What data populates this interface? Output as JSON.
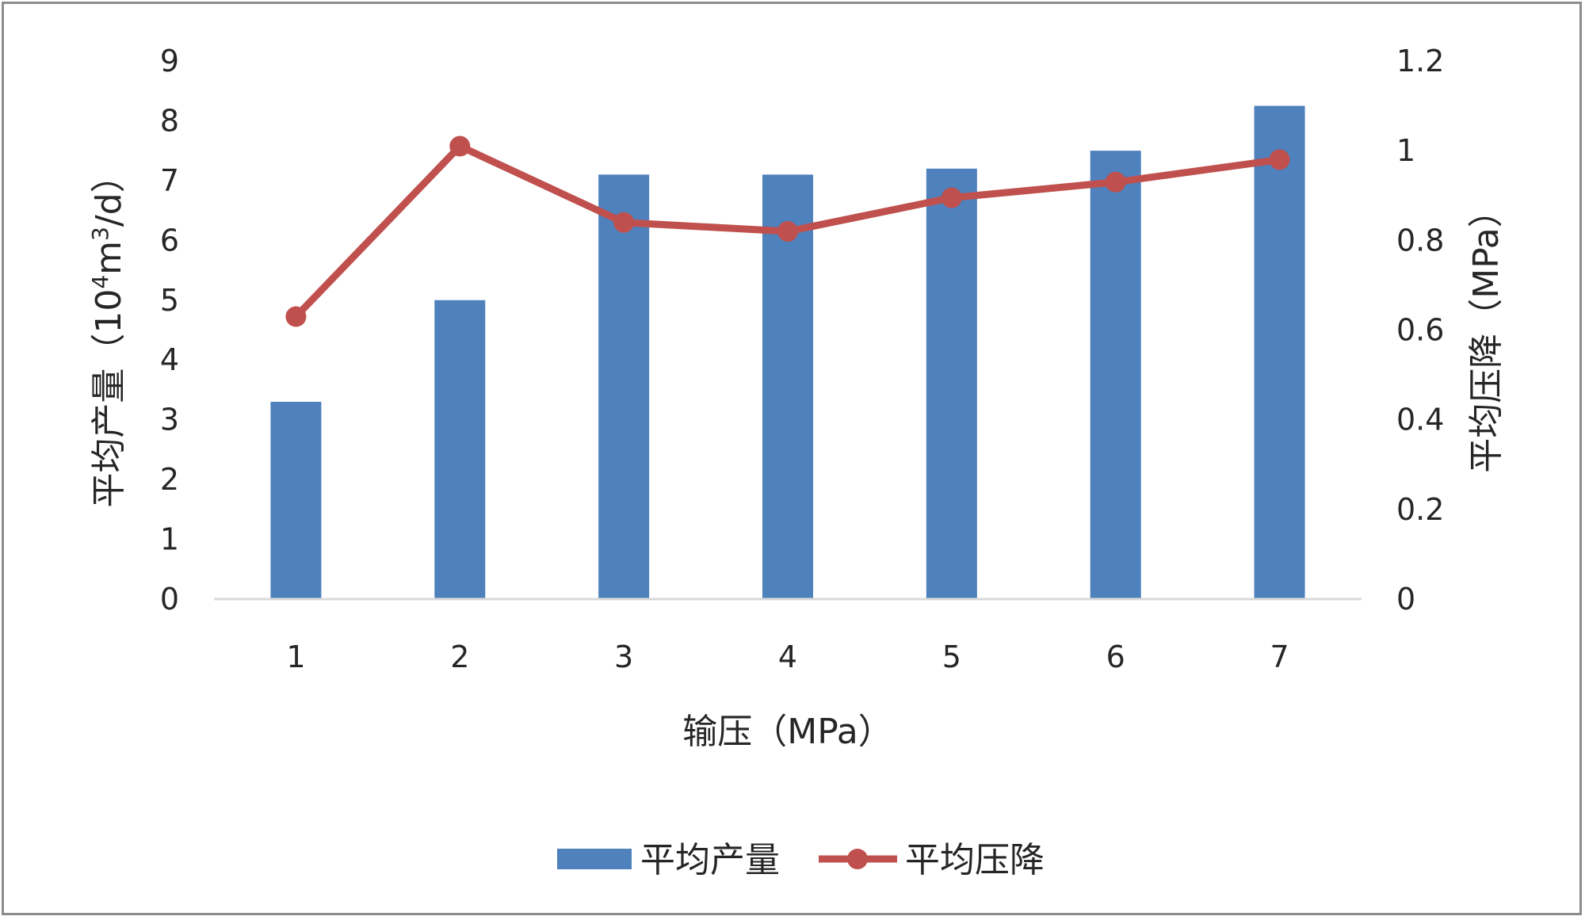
{
  "chart_data": {
    "type": "bar",
    "categories": [
      "1",
      "2",
      "3",
      "4",
      "5",
      "6",
      "7"
    ],
    "series": [
      {
        "name": "平均产量",
        "kind": "bar",
        "axis": "left",
        "color": "#4f81bd",
        "values": [
          3.3,
          5.0,
          7.1,
          7.1,
          7.2,
          7.5,
          8.25
        ]
      },
      {
        "name": "平均压降",
        "kind": "line",
        "axis": "right",
        "color": "#c0504d",
        "values": [
          0.63,
          1.01,
          0.84,
          0.82,
          0.895,
          0.93,
          0.98
        ]
      }
    ],
    "xlabel": "输压（MPa）",
    "ylabel": "平均产量（10⁴m³/d）",
    "ylabel_parts": {
      "before": "平均产量（10",
      "sup1": "4",
      "mid": "m",
      "sup2": "3",
      "after": "/d）"
    },
    "y2label": "平均压降（MPa）",
    "ylim": [
      0,
      9
    ],
    "y2lim": [
      0,
      1.2
    ],
    "yticks": [
      "0",
      "1",
      "2",
      "3",
      "4",
      "5",
      "6",
      "7",
      "8",
      "9"
    ],
    "y2ticks": [
      "0",
      "0.2",
      "0.4",
      "0.6",
      "0.8",
      "1",
      "1.2"
    ],
    "grid": false,
    "legend_position": "bottom"
  }
}
